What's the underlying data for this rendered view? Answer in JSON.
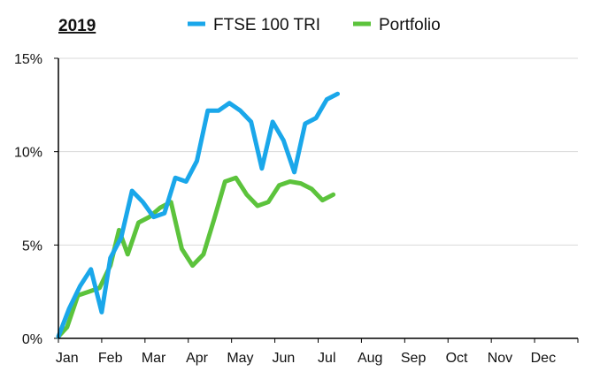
{
  "chart_data": {
    "type": "line",
    "title": "2019",
    "xlabel": "",
    "ylabel": "",
    "x_axis": {
      "unit": "month",
      "range": [
        0,
        12
      ],
      "tick_labels": [
        "Jan",
        "Feb",
        "Mar",
        "Apr",
        "May",
        "Jun",
        "Jul",
        "Aug",
        "Sep",
        "Oct",
        "Nov",
        "Dec"
      ]
    },
    "y_axis": {
      "range": [
        0,
        15
      ],
      "ticks": [
        0,
        5,
        10,
        15
      ],
      "tick_labels": [
        "0%",
        "5%",
        "10%",
        "15%"
      ]
    },
    "grid": true,
    "legend": {
      "placement": "top"
    },
    "series": [
      {
        "name": "FTSE 100 TRI",
        "color": "#1aa7ea",
        "points": [
          [
            0.0,
            0.1
          ],
          [
            0.25,
            1.6
          ],
          [
            0.5,
            2.8
          ],
          [
            0.75,
            3.7
          ],
          [
            1.0,
            1.4
          ],
          [
            1.2,
            4.3
          ],
          [
            1.45,
            5.4
          ],
          [
            1.7,
            7.9
          ],
          [
            1.95,
            7.3
          ],
          [
            2.2,
            6.5
          ],
          [
            2.45,
            6.7
          ],
          [
            2.7,
            8.6
          ],
          [
            2.95,
            8.4
          ],
          [
            3.2,
            9.5
          ],
          [
            3.45,
            12.2
          ],
          [
            3.7,
            12.2
          ],
          [
            3.95,
            12.6
          ],
          [
            4.2,
            12.2
          ],
          [
            4.45,
            11.6
          ],
          [
            4.7,
            9.1
          ],
          [
            4.95,
            11.6
          ],
          [
            5.2,
            10.6
          ],
          [
            5.45,
            8.9
          ],
          [
            5.7,
            11.5
          ],
          [
            5.95,
            11.8
          ],
          [
            6.2,
            12.8
          ],
          [
            6.45,
            13.1
          ]
        ]
      },
      {
        "name": "Portfolio",
        "color": "#5cc33c",
        "points": [
          [
            0.0,
            0.1
          ],
          [
            0.2,
            0.6
          ],
          [
            0.45,
            2.3
          ],
          [
            0.7,
            2.5
          ],
          [
            0.95,
            2.7
          ],
          [
            1.2,
            3.9
          ],
          [
            1.4,
            5.8
          ],
          [
            1.6,
            4.5
          ],
          [
            1.85,
            6.2
          ],
          [
            2.1,
            6.5
          ],
          [
            2.35,
            7.0
          ],
          [
            2.6,
            7.3
          ],
          [
            2.85,
            4.8
          ],
          [
            3.1,
            3.9
          ],
          [
            3.35,
            4.5
          ],
          [
            3.6,
            6.4
          ],
          [
            3.85,
            8.4
          ],
          [
            4.1,
            8.6
          ],
          [
            4.35,
            7.7
          ],
          [
            4.6,
            7.1
          ],
          [
            4.85,
            7.3
          ],
          [
            5.1,
            8.2
          ],
          [
            5.35,
            8.4
          ],
          [
            5.6,
            8.3
          ],
          [
            5.85,
            8.0
          ],
          [
            6.1,
            7.4
          ],
          [
            6.35,
            7.7
          ]
        ]
      }
    ]
  }
}
